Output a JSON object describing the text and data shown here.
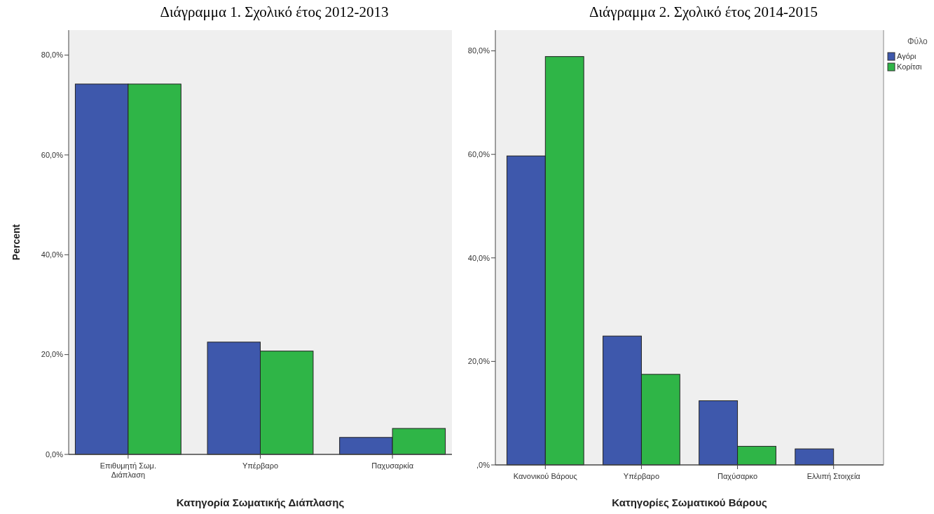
{
  "chart_data": [
    {
      "type": "bar",
      "title": "Διάγραμμα 1. Σχολικό έτος 2012-2013",
      "xlabel": "Κατηγορία Σωματικής Διάπλασης",
      "ylabel": "Percent",
      "categories": [
        "Επιθυμητή Σωμ. Διάπλαση",
        "Υπέρβαρο",
        "Παχυσαρκία"
      ],
      "ylim": [
        0,
        85
      ],
      "yticks": [
        {
          "value": 0,
          "label": "0,0%"
        },
        {
          "value": 20,
          "label": "20,0%"
        },
        {
          "value": 40,
          "label": "40,0%"
        },
        {
          "value": 60,
          "label": "60,0%"
        },
        {
          "value": 80,
          "label": "80,0%"
        }
      ],
      "legend": false,
      "series": [
        {
          "color": "#3e58ac",
          "values": [
            74.2,
            22.5,
            3.4
          ]
        },
        {
          "color": "#2fb547",
          "values": [
            74.2,
            20.7,
            5.2
          ]
        }
      ]
    },
    {
      "type": "bar",
      "title": "Διάγραμμα 2. Σχολικό έτος 2014-2015",
      "xlabel": "Κατηγορίες Σωματικού Βάρους",
      "categories": [
        "Κανονικού Βάρους",
        "Υπέρβαρο",
        "Παχύσαρκο",
        "Ελλιπή Στοιχεία"
      ],
      "ylim": [
        0,
        84
      ],
      "yticks": [
        {
          "value": 0,
          "label": ",0%"
        },
        {
          "value": 20,
          "label": "20,0%"
        },
        {
          "value": 40,
          "label": "40,0%"
        },
        {
          "value": 60,
          "label": "60,0%"
        },
        {
          "value": 80,
          "label": "80,0%"
        }
      ],
      "legend": "right",
      "legend_title": "Φύλο",
      "series": [
        {
          "name": "Αγόρι",
          "color": "#3e58ac",
          "values": [
            59.7,
            24.9,
            12.4,
            3.1
          ]
        },
        {
          "name": "Κορίτσι",
          "color": "#2fb547",
          "values": [
            78.9,
            17.5,
            3.6,
            null
          ]
        }
      ]
    }
  ]
}
